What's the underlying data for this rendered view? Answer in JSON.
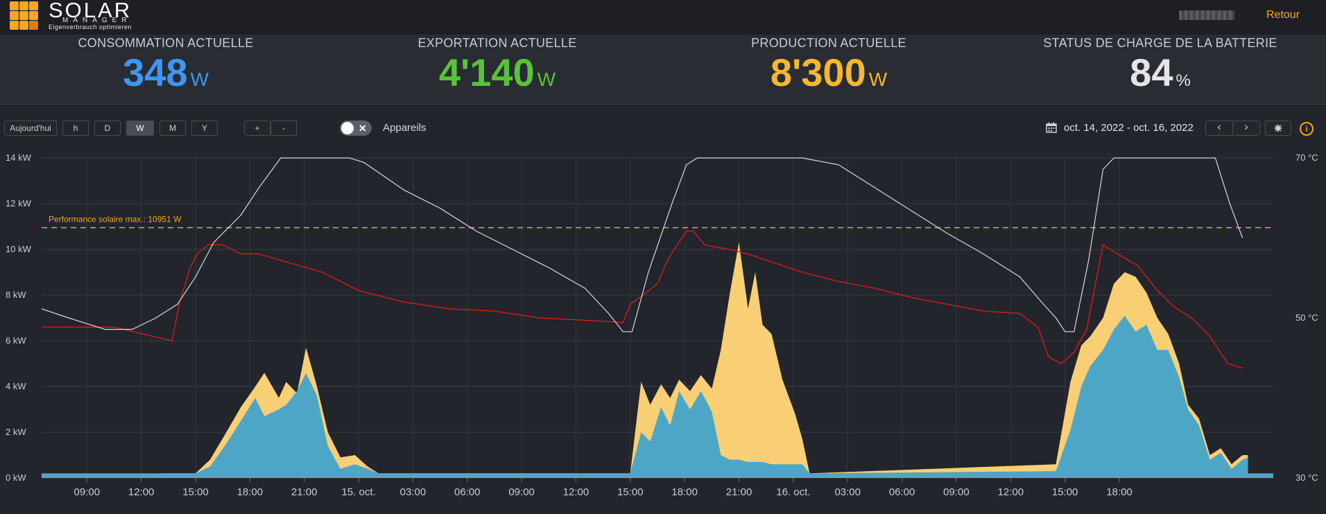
{
  "header": {
    "logo_title": "SOLAR",
    "logo_subtitle": "MANAGER",
    "logo_tagline": "Eigenverbrauch optimieren",
    "back_label": "Retour"
  },
  "metrics": [
    {
      "label": "CONSOMMATION ACTUELLE",
      "value": "348",
      "unit": "W",
      "color": "#3d97f0"
    },
    {
      "label": "EXPORTATION ACTUELLE",
      "value": "4'140",
      "unit": "W",
      "color": "#58c33a"
    },
    {
      "label": "PRODUCTION ACTUELLE",
      "value": "8'300",
      "unit": "W",
      "color": "#f5b731"
    },
    {
      "label": "STATUS DE CHARGE DE LA BATTERIE",
      "value": "84",
      "unit": "%",
      "color": "#e3e5e9"
    }
  ],
  "toolbar": {
    "today_label": "Aujourd'hui",
    "range_buttons": [
      "h",
      "D",
      "W",
      "M",
      "Y"
    ],
    "active_range": "W",
    "zoom_in_label": "+",
    "zoom_out_label": "-",
    "devices_label": "Appareils",
    "date_range": "oct. 14, 2022 - oct. 16, 2022",
    "prev_label": "‹",
    "next_label": "›",
    "settings_icon": "gear-icon",
    "info_label": "i"
  },
  "chart_data": {
    "type": "area",
    "x_ticks": [
      "09:00",
      "12:00",
      "15:00",
      "18:00",
      "21:00",
      "15. oct.",
      "03:00",
      "06:00",
      "09:00",
      "12:00",
      "15:00",
      "18:00",
      "21:00",
      "16. oct.",
      "03:00",
      "06:00",
      "09:00",
      "12:00",
      "15:00",
      "18:00"
    ],
    "y_left": {
      "ticks": [
        "0 kW",
        "2 kW",
        "4 kW",
        "6 kW",
        "8 kW",
        "10 kW",
        "12 kW",
        "14 kW"
      ],
      "ylim": [
        0,
        14
      ]
    },
    "y_right": {
      "ticks": [
        "30 °C",
        "50 °C",
        "70 °C"
      ],
      "ylim": [
        30,
        70
      ]
    },
    "annotation": "Performance solaire max.: 10951 W",
    "max_line_kw": 10.951,
    "colors": {
      "production": "#f6bd3e",
      "consumption_light": "#f9dea0",
      "self_use": "#4ea6c6",
      "temperature": "#d9dbdf",
      "temperature2": "#d81a1a",
      "threshold": "#f0a520"
    },
    "series": [
      {
        "name": "production",
        "x": [
          6.5,
          8.5,
          9.3,
          10.2,
          11,
          11.8,
          12.3,
          13.1,
          13.5,
          14.1,
          14.6,
          15.2,
          15.8,
          16.5,
          17.3,
          18.0,
          18.6,
          32.5,
          33.1,
          33.6,
          34.2,
          34.7,
          35.2,
          35.8,
          36.4,
          37,
          37.5,
          38.0,
          38.5,
          39,
          39.4,
          39.8,
          40.3,
          40.9,
          41.6,
          42.0,
          42.4,
          56.0,
          56.8,
          57.4,
          57.9,
          58.6,
          59.2,
          59.8,
          60.4,
          61.0,
          61.6,
          62.2,
          62.8,
          63.3,
          63.9,
          64.5,
          65.1,
          65.7,
          66.3,
          66.6
        ],
        "y": [
          0.2,
          0.2,
          0.8,
          2.0,
          3.1,
          4.0,
          4.6,
          3.5,
          4.2,
          3.7,
          5.7,
          4.0,
          2.0,
          0.9,
          1.0,
          0.5,
          0.2,
          0.2,
          4.2,
          3.2,
          4.1,
          3.5,
          4.3,
          3.8,
          4.5,
          3.9,
          5.6,
          8.1,
          10.3,
          7.4,
          9.0,
          6.7,
          6.3,
          4.3,
          2.8,
          1.7,
          0.2,
          0.6,
          4.2,
          5.8,
          6.2,
          7.0,
          8.5,
          9.0,
          8.8,
          8.1,
          7.0,
          6.3,
          5.0,
          3.2,
          2.6,
          1.0,
          1.3,
          0.6,
          1.0,
          1.0
        ]
      },
      {
        "name": "self_use",
        "x": [
          6.5,
          8.5,
          9.3,
          10.2,
          11,
          11.8,
          12.3,
          13.1,
          13.5,
          14.1,
          14.6,
          15.2,
          15.8,
          16.5,
          17.3,
          18.0,
          18.6,
          32.5,
          33.1,
          33.6,
          34.2,
          34.7,
          35.2,
          35.8,
          36.4,
          37,
          37.5,
          38.0,
          38.5,
          39,
          39.4,
          39.8,
          40.3,
          40.9,
          41.6,
          42.0,
          42.4,
          56.0,
          56.8,
          57.4,
          57.9,
          58.6,
          59.2,
          59.8,
          60.4,
          61.0,
          61.6,
          62.2,
          62.8,
          63.3,
          63.9,
          64.5,
          65.1,
          65.7,
          66.3,
          66.6
        ],
        "y": [
          0.2,
          0.2,
          0.5,
          1.5,
          2.5,
          3.5,
          2.7,
          3.0,
          3.2,
          3.8,
          4.6,
          3.6,
          1.4,
          0.4,
          0.6,
          0.4,
          0.2,
          0.2,
          2.0,
          1.6,
          3.1,
          2.3,
          3.8,
          3.0,
          3.8,
          2.9,
          1.0,
          0.8,
          0.8,
          0.7,
          0.7,
          0.7,
          0.6,
          0.6,
          0.6,
          0.6,
          0.2,
          0.3,
          2.1,
          4.0,
          4.9,
          5.6,
          6.5,
          7.1,
          6.4,
          6.7,
          5.6,
          5.6,
          4.4,
          3.0,
          2.3,
          0.8,
          1.1,
          0.4,
          0.8,
          0.9
        ]
      },
      {
        "name": "temperature_1",
        "x": [
          0,
          1.5,
          3.5,
          5,
          6.3,
          7.5,
          8.5,
          9.5,
          11,
          12,
          13.2,
          14.2,
          15.5,
          17,
          17.8,
          20,
          22,
          24,
          26,
          28,
          30,
          31.3,
          32.1,
          32.6,
          33.5,
          34.8,
          35.6,
          36.2,
          36.8,
          37.5,
          38.5,
          40,
          42,
          44,
          46,
          48,
          50,
          52,
          54,
          55.2,
          56.0,
          56.5,
          57,
          57.8,
          58.6,
          59.2,
          60,
          61,
          62,
          63,
          64,
          64.8,
          65.6,
          66.3
        ],
        "y": [
          7.4,
          7.0,
          6.5,
          6.5,
          7.0,
          7.6,
          8.8,
          10.3,
          11.5,
          12.7,
          14.0,
          14.0,
          14.0,
          14.0,
          13.8,
          12.6,
          11.8,
          10.8,
          10.0,
          9.2,
          8.3,
          7.2,
          6.4,
          6.4,
          9.0,
          12.0,
          13.7,
          14.0,
          14.0,
          14.0,
          14.0,
          14.0,
          14.0,
          13.7,
          12.7,
          11.7,
          10.7,
          9.8,
          8.8,
          7.7,
          7.0,
          6.4,
          6.4,
          9.5,
          13.5,
          14.0,
          14.0,
          14.0,
          14.0,
          14.0,
          14.0,
          14.0,
          12.0,
          10.5
        ]
      },
      {
        "name": "temperature_2",
        "x": [
          0,
          4,
          7.2,
          7.6,
          8.2,
          8.6,
          9.2,
          10,
          11,
          12,
          13.3,
          15.5,
          17.5,
          20,
          22.5,
          25,
          27.5,
          30,
          32.1,
          32.5,
          33.2,
          34,
          34.6,
          35.6,
          36.0,
          36.6,
          37.2,
          38.0,
          39,
          40.5,
          42,
          44,
          46,
          48,
          50,
          52,
          54,
          55.0,
          55.6,
          56.3,
          57,
          57.7,
          58.6,
          59.4,
          60.5,
          61.5,
          62.5,
          63.5,
          64.5,
          65.5,
          66.3
        ],
        "y": [
          6.6,
          6.6,
          6.0,
          7.6,
          9.2,
          9.8,
          10.2,
          10.2,
          9.8,
          9.8,
          9.5,
          9.0,
          8.2,
          7.7,
          7.4,
          7.3,
          7.0,
          6.9,
          6.8,
          7.6,
          8.0,
          8.5,
          9.6,
          10.8,
          10.8,
          10.2,
          10.1,
          10.0,
          9.8,
          9.4,
          9.0,
          8.6,
          8.3,
          7.9,
          7.6,
          7.3,
          7.2,
          6.6,
          5.3,
          5.0,
          5.5,
          6.5,
          10.2,
          9.8,
          9.3,
          8.3,
          7.5,
          7.0,
          6.2,
          5.0,
          4.8
        ]
      }
    ]
  }
}
